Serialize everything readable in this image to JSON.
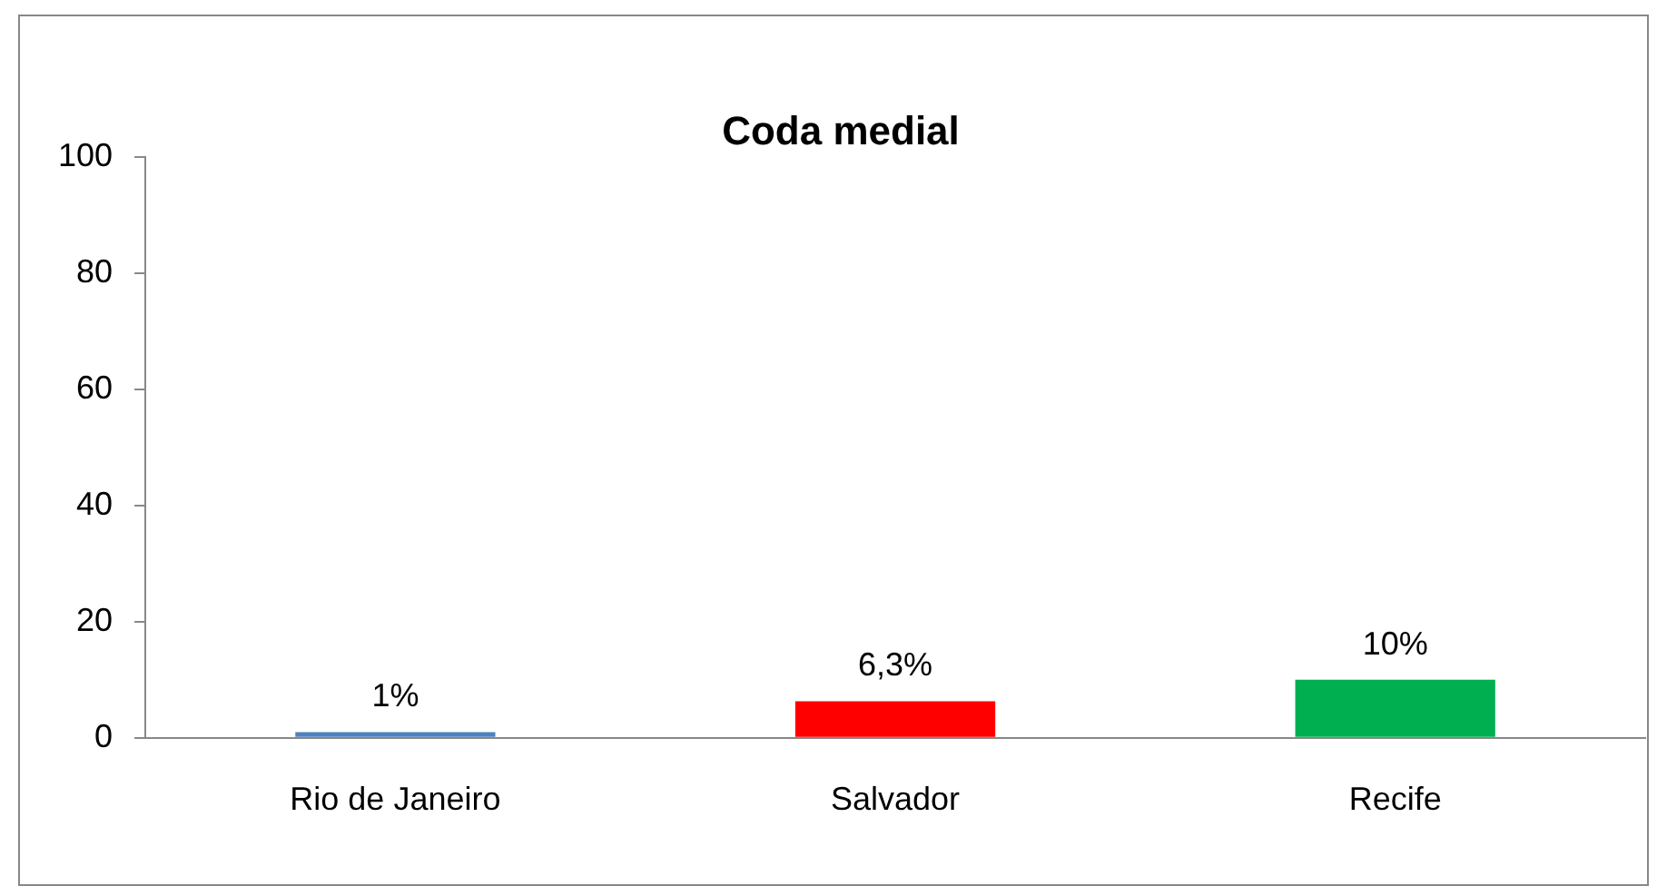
{
  "chart_data": {
    "type": "bar",
    "title": "Coda medial",
    "categories": [
      "Rio de Janeiro",
      "Salvador",
      "Recife"
    ],
    "values": [
      1,
      6.3,
      10
    ],
    "value_labels": [
      "1%",
      "6,3%",
      "10%"
    ],
    "colors": [
      "#4f81bd",
      "#ff0000",
      "#00b050"
    ],
    "ylim": [
      0,
      100
    ],
    "yticks": [
      0,
      20,
      40,
      60,
      80,
      100
    ],
    "grid": false,
    "legend": false
  }
}
